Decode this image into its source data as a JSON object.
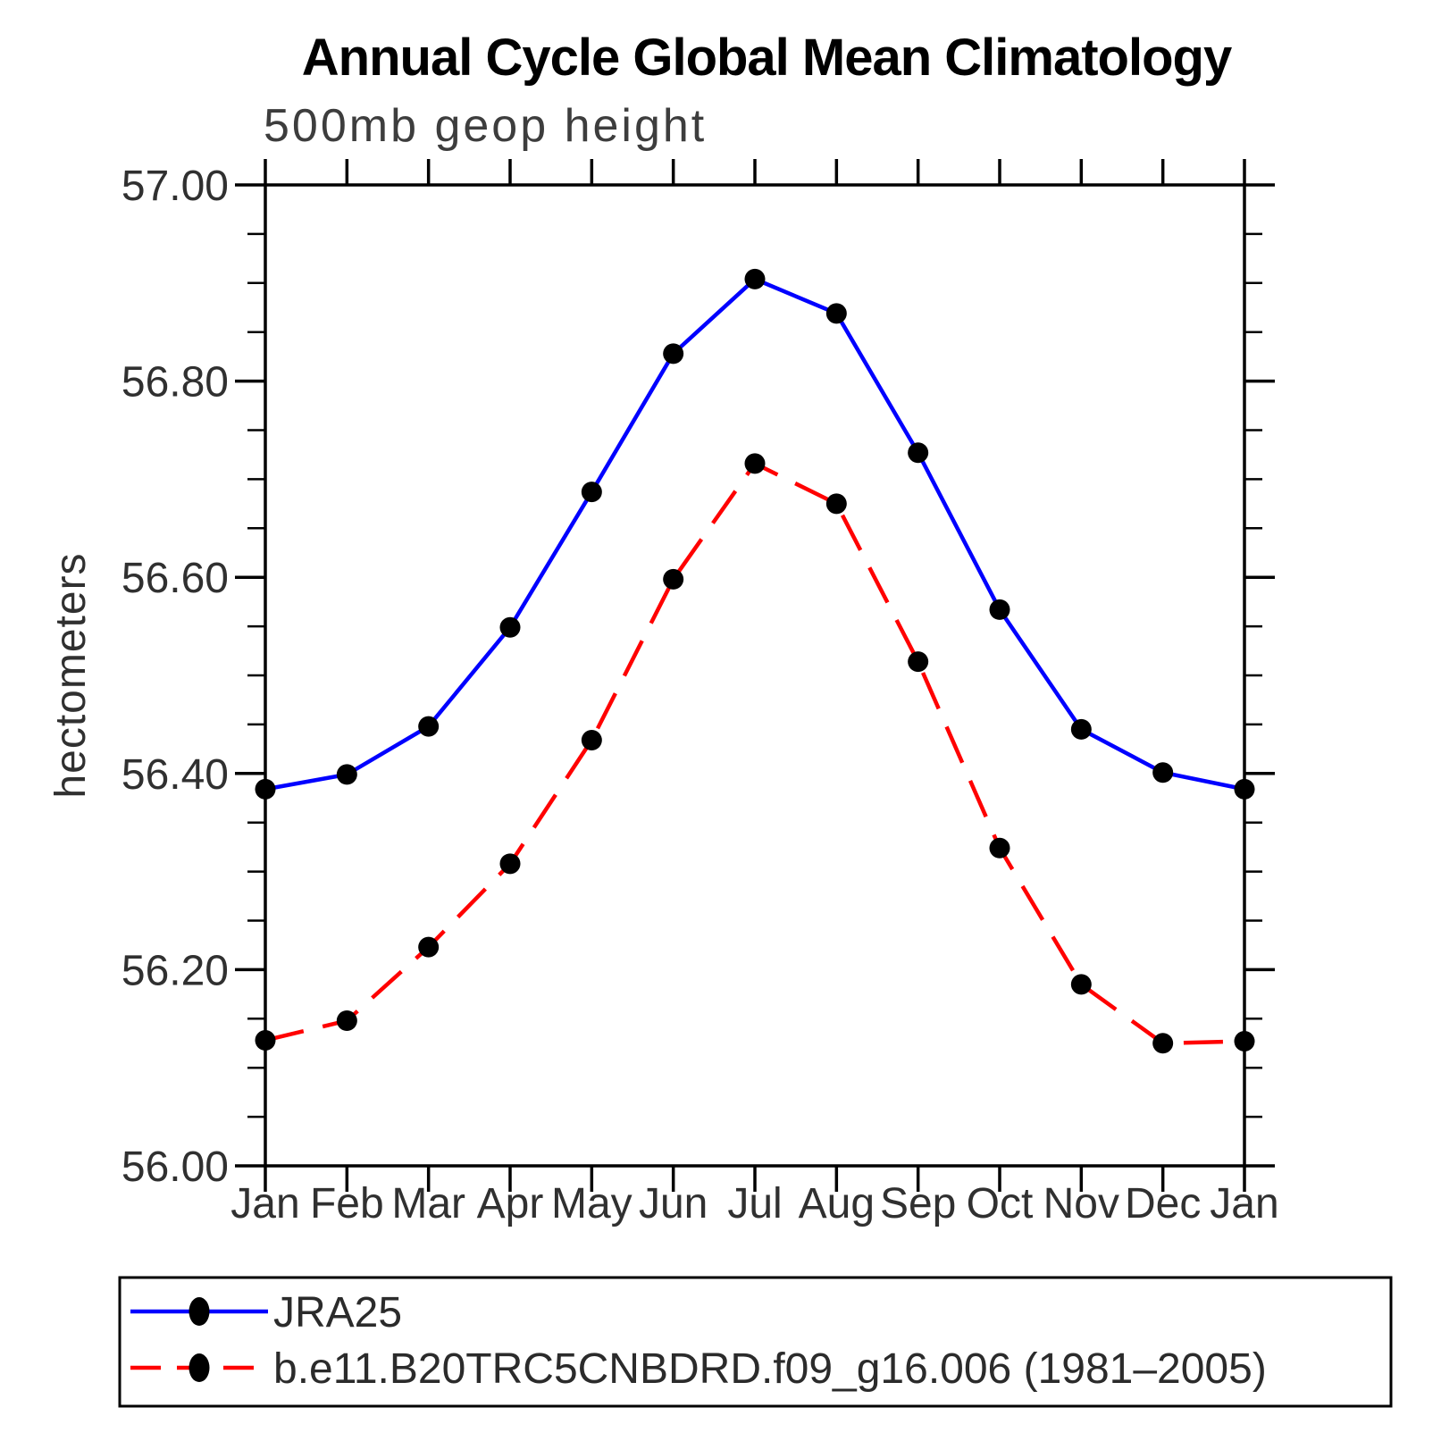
{
  "chart_data": {
    "type": "line",
    "title": "Annual Cycle Global Mean Climatology",
    "subtitle": "500mb geop height",
    "ylabel": "hectometers",
    "xlabel": "",
    "categories": [
      "Jan",
      "Feb",
      "Mar",
      "Apr",
      "May",
      "Jun",
      "Jul",
      "Aug",
      "Sep",
      "Oct",
      "Nov",
      "Dec",
      "Jan"
    ],
    "ylim": [
      56.0,
      57.0
    ],
    "ytick_major_interval": 0.2,
    "ytick_minor_interval": 0.05,
    "ytick_major_labels": [
      "56.00",
      "56.20",
      "56.40",
      "56.60",
      "56.80",
      "57.00"
    ],
    "grid": "off",
    "legend_position": "bottom",
    "marker_color": "#000000",
    "frame_color": "#000000",
    "series": [
      {
        "name": "JRA25",
        "color": "#0000ff",
        "line_style": "solid",
        "marker": "filled-circle",
        "values": [
          56.384,
          56.399,
          56.448,
          56.549,
          56.687,
          56.828,
          56.904,
          56.869,
          56.727,
          56.567,
          56.445,
          56.401,
          56.384
        ]
      },
      {
        "name": "b.e11.B20TRC5CNBDRD.f09_g16.006 (1981–2005)",
        "color": "#ff0000",
        "line_style": "dashed",
        "marker": "filled-circle",
        "values": [
          56.128,
          56.148,
          56.223,
          56.308,
          56.434,
          56.598,
          56.716,
          56.675,
          56.514,
          56.324,
          56.185,
          56.125,
          56.127
        ]
      }
    ]
  }
}
